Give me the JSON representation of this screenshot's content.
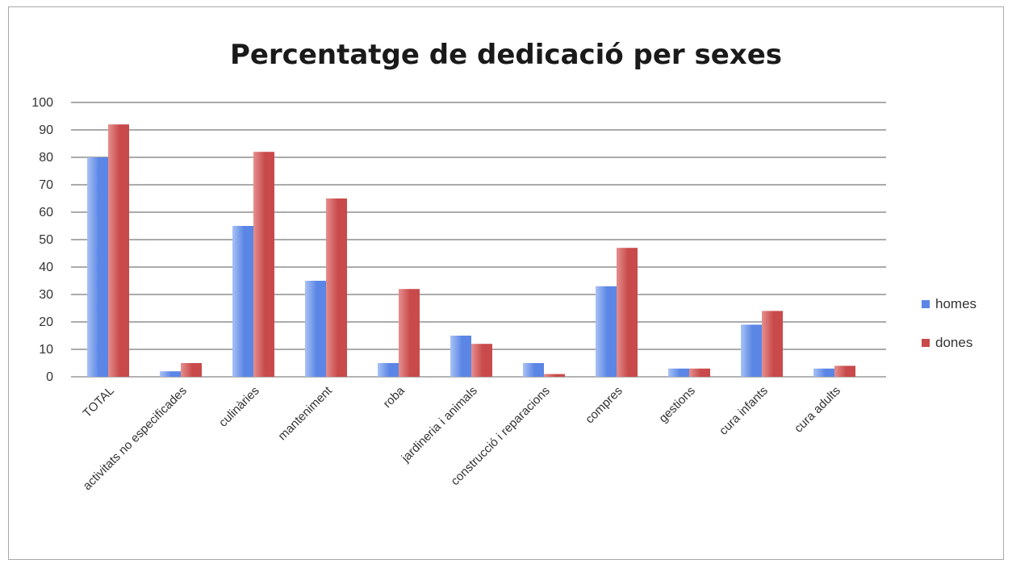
{
  "chart_data": {
    "type": "bar",
    "title": "Percentatge de dedicació per sexes",
    "xlabel": "",
    "ylabel": "",
    "ylim": [
      0,
      100
    ],
    "yticks": [
      0,
      10,
      20,
      30,
      40,
      50,
      60,
      70,
      80,
      90,
      100
    ],
    "grid": true,
    "legend_position": "right",
    "categories": [
      "TOTAL",
      "activitats no especificades",
      "culinàries",
      "manteniment",
      "roba",
      "jardineria i animals",
      "construcció i reparacions",
      "compres",
      "gestions",
      "cura infants",
      "cura adults"
    ],
    "series": [
      {
        "name": "homes",
        "color": "#5b86e5",
        "values": [
          80,
          2,
          55,
          35,
          5,
          15,
          5,
          33,
          3,
          19,
          3
        ]
      },
      {
        "name": "dones",
        "color": "#c94a4a",
        "values": [
          92,
          5,
          82,
          65,
          32,
          12,
          1,
          47,
          3,
          24,
          4
        ]
      }
    ]
  }
}
